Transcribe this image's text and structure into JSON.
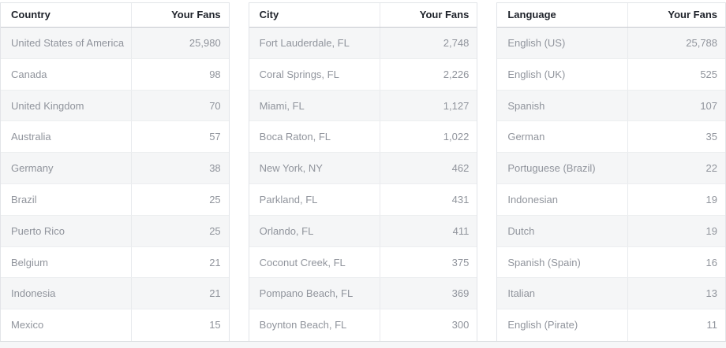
{
  "colors": {
    "header_text": "#1d2129",
    "row_text": "#90949c",
    "row_stripe": "#f5f6f7",
    "table_border": "#e2e4e8",
    "header_rule": "#c6c9ce",
    "row_rule": "#eceef0",
    "page_background_strip": "#f6f7f8"
  },
  "tables": [
    {
      "header": {
        "category": "Country",
        "value": "Your Fans"
      },
      "rows": [
        {
          "name": "United States of America",
          "value": "25,980"
        },
        {
          "name": "Canada",
          "value": "98"
        },
        {
          "name": "United Kingdom",
          "value": "70"
        },
        {
          "name": "Australia",
          "value": "57"
        },
        {
          "name": "Germany",
          "value": "38"
        },
        {
          "name": "Brazil",
          "value": "25"
        },
        {
          "name": "Puerto Rico",
          "value": "25"
        },
        {
          "name": "Belgium",
          "value": "21"
        },
        {
          "name": "Indonesia",
          "value": "21"
        },
        {
          "name": "Mexico",
          "value": "15"
        }
      ]
    },
    {
      "header": {
        "category": "City",
        "value": "Your Fans"
      },
      "rows": [
        {
          "name": "Fort Lauderdale, FL",
          "value": "2,748"
        },
        {
          "name": "Coral Springs, FL",
          "value": "2,226"
        },
        {
          "name": "Miami, FL",
          "value": "1,127"
        },
        {
          "name": "Boca Raton, FL",
          "value": "1,022"
        },
        {
          "name": "New York, NY",
          "value": "462"
        },
        {
          "name": "Parkland, FL",
          "value": "431"
        },
        {
          "name": "Orlando, FL",
          "value": "411"
        },
        {
          "name": "Coconut Creek, FL",
          "value": "375"
        },
        {
          "name": "Pompano Beach, FL",
          "value": "369"
        },
        {
          "name": "Boynton Beach, FL",
          "value": "300"
        }
      ]
    },
    {
      "header": {
        "category": "Language",
        "value": "Your Fans"
      },
      "rows": [
        {
          "name": "English (US)",
          "value": "25,788"
        },
        {
          "name": "English (UK)",
          "value": "525"
        },
        {
          "name": "Spanish",
          "value": "107"
        },
        {
          "name": "German",
          "value": "35"
        },
        {
          "name": "Portuguese (Brazil)",
          "value": "22"
        },
        {
          "name": "Indonesian",
          "value": "19"
        },
        {
          "name": "Dutch",
          "value": "19"
        },
        {
          "name": "Spanish (Spain)",
          "value": "16"
        },
        {
          "name": "Italian",
          "value": "13"
        },
        {
          "name": "English (Pirate)",
          "value": "11"
        }
      ]
    }
  ]
}
